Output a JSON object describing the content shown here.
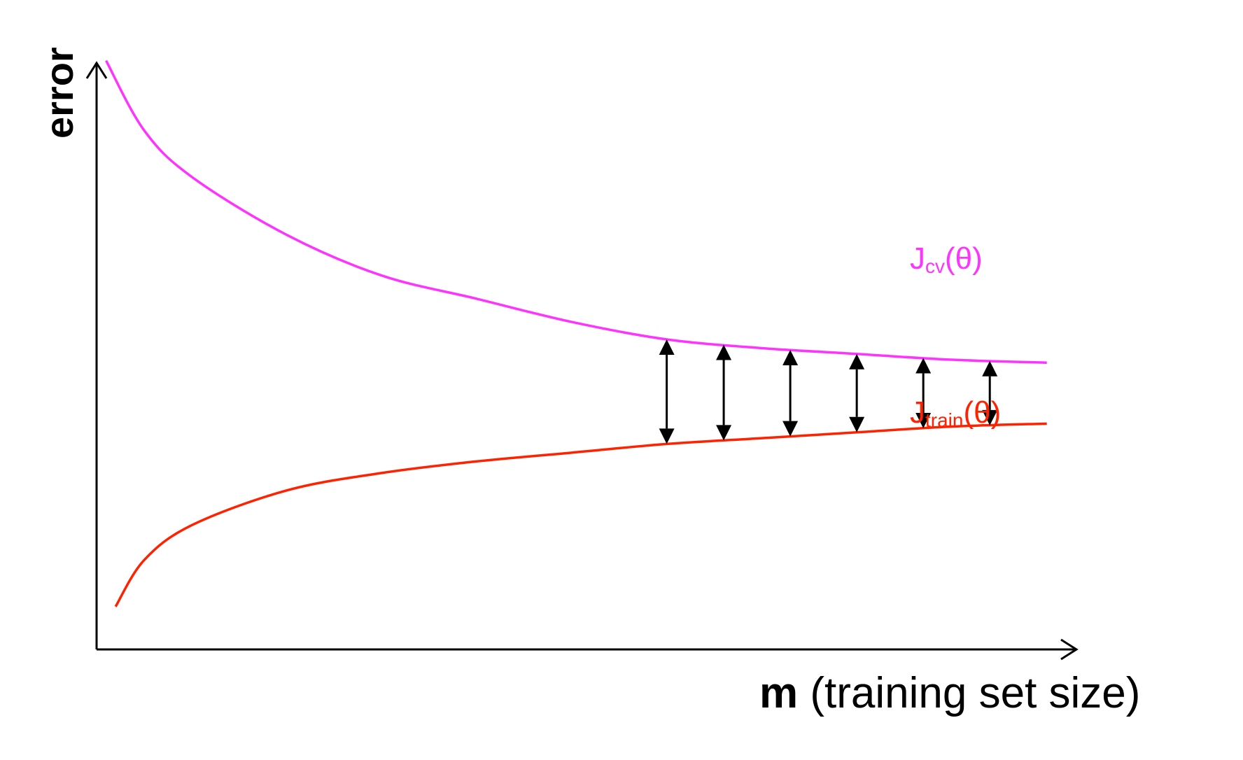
{
  "chart_data": {
    "type": "line",
    "ylabel": "error",
    "xlabel_bold": "m",
    "xlabel_rest": " (training set size)",
    "series": [
      {
        "name": "Jcv(θ)",
        "label_main": "J",
        "label_sub": "cv",
        "label_tail": "(θ)",
        "color": "#ff33ff",
        "x": [
          0.01,
          0.05,
          0.1,
          0.2,
          0.3,
          0.4,
          0.5,
          0.6,
          0.7,
          0.8,
          0.9,
          1.0
        ],
        "y": [
          0.98,
          0.86,
          0.78,
          0.68,
          0.61,
          0.57,
          0.53,
          0.5,
          0.485,
          0.475,
          0.465,
          0.46
        ]
      },
      {
        "name": "Jtrain(θ)",
        "label_main": "J",
        "label_sub": "train",
        "label_tail": "(θ)",
        "color": "#ff2200",
        "x": [
          0.02,
          0.05,
          0.1,
          0.2,
          0.3,
          0.4,
          0.5,
          0.6,
          0.7,
          0.8,
          0.9,
          1.0
        ],
        "y": [
          0.04,
          0.12,
          0.18,
          0.24,
          0.27,
          0.29,
          0.305,
          0.32,
          0.33,
          0.34,
          0.35,
          0.355
        ]
      }
    ],
    "gap_arrows_x": [
      0.6,
      0.66,
      0.73,
      0.8,
      0.87,
      0.94
    ],
    "xlim": [
      0,
      1.04
    ],
    "ylim": [
      0,
      1
    ],
    "grid": false,
    "legend": "none"
  }
}
